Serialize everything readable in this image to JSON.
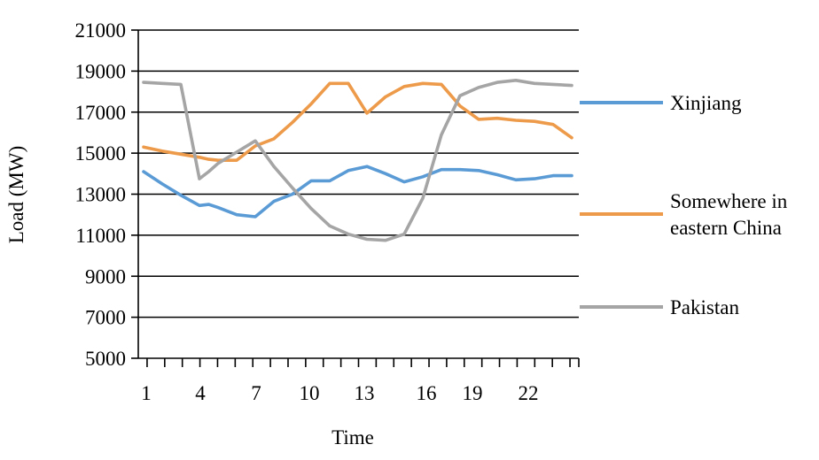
{
  "chart_data": {
    "type": "line",
    "title": "",
    "xlabel": "Time",
    "ylabel": "Load (MW)",
    "ylim": [
      5000,
      21000
    ],
    "yticks": [
      5000,
      7000,
      9000,
      11000,
      13000,
      15000,
      17000,
      19000,
      21000
    ],
    "xlim": [
      1,
      24
    ],
    "xtick_labels": [
      1,
      4,
      7,
      10,
      13,
      16,
      19,
      22
    ],
    "grid": "horizontal",
    "legend_placement": "right",
    "x": [
      1,
      2,
      3,
      4,
      4.5,
      5,
      6,
      7,
      8,
      9,
      10,
      11,
      12,
      13,
      14,
      15,
      16,
      17,
      18,
      19,
      20,
      21,
      22,
      23,
      24
    ],
    "series": [
      {
        "name": "Xinjiang",
        "color": "#5b9bd5",
        "values": [
          14100,
          13500,
          12950,
          12450,
          12500,
          12350,
          12000,
          11900,
          12650,
          13000,
          13650,
          13650,
          14150,
          14350,
          14000,
          13600,
          13850,
          14200,
          14200,
          14150,
          13950,
          13700,
          13750,
          13900,
          13900
        ]
      },
      {
        "name": "Somewhere in eastern China",
        "color": "#ed9b4a",
        "values": [
          15300,
          15100,
          14950,
          14800,
          14700,
          14650,
          14650,
          15350,
          15700,
          16500,
          17400,
          18400,
          18400,
          16950,
          17750,
          18250,
          18400,
          18350,
          17300,
          16650,
          16700,
          16600,
          16550,
          16400,
          15750
        ]
      },
      {
        "name": "Pakistan",
        "color": "#a5a5a5",
        "values": [
          18450,
          18400,
          18350,
          13750,
          14100,
          14500,
          15050,
          15600,
          14350,
          13300,
          12300,
          11450,
          11050,
          10800,
          10750,
          11050,
          12800,
          15900,
          17800,
          18200,
          18450,
          18550,
          18400,
          18350,
          18300
        ]
      }
    ]
  }
}
